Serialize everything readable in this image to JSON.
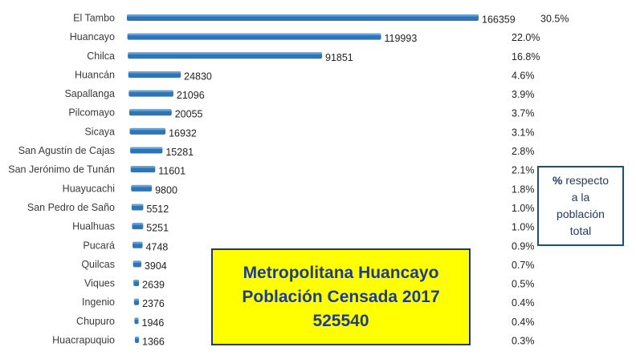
{
  "chart_data": {
    "type": "bar",
    "orientation": "horizontal",
    "categories": [
      "El Tambo",
      "Huancayo",
      "Chilca",
      "Huancán",
      "Sapallanga",
      "Pilcomayo",
      "Sicaya",
      "San Agustín de Cajas",
      "San Jerónimo de Tunán",
      "Huayucachi",
      "San Pedro de Saño",
      "Hualhuas",
      "Pucará",
      "Quilcas",
      "Viques",
      "Ingenio",
      "Chupuro",
      "Huacrapuquio"
    ],
    "series": [
      {
        "values": [
          166359,
          119993,
          91851,
          24830,
          21096,
          20055,
          16932,
          15281,
          11601,
          9800,
          5512,
          5251,
          4748,
          3904,
          2639,
          2376,
          1946,
          1366
        ],
        "percent_labels": [
          "30.5%",
          "22.0%",
          "16.8%",
          "4.6%",
          "3.9%",
          "3.7%",
          "3.1%",
          "2.8%",
          "2.1%",
          "1.8%",
          "1.0%",
          "1.0%",
          "0.9%",
          "0.7%",
          "0.5%",
          "0.4%",
          "0.4%",
          "0.3%"
        ]
      }
    ],
    "xlim": [
      0,
      166359
    ],
    "grid": false,
    "bar_color": "#2e75b6",
    "legend_box": {
      "bold": "%",
      "lines": [
        "respecto",
        "a la",
        "población",
        "total"
      ]
    },
    "title_box": {
      "lines": [
        "Metropolitana Huancayo",
        "Población Censada 2017",
        "525540"
      ],
      "background": "#ffff00",
      "text_color": "#1f3c8a"
    }
  }
}
